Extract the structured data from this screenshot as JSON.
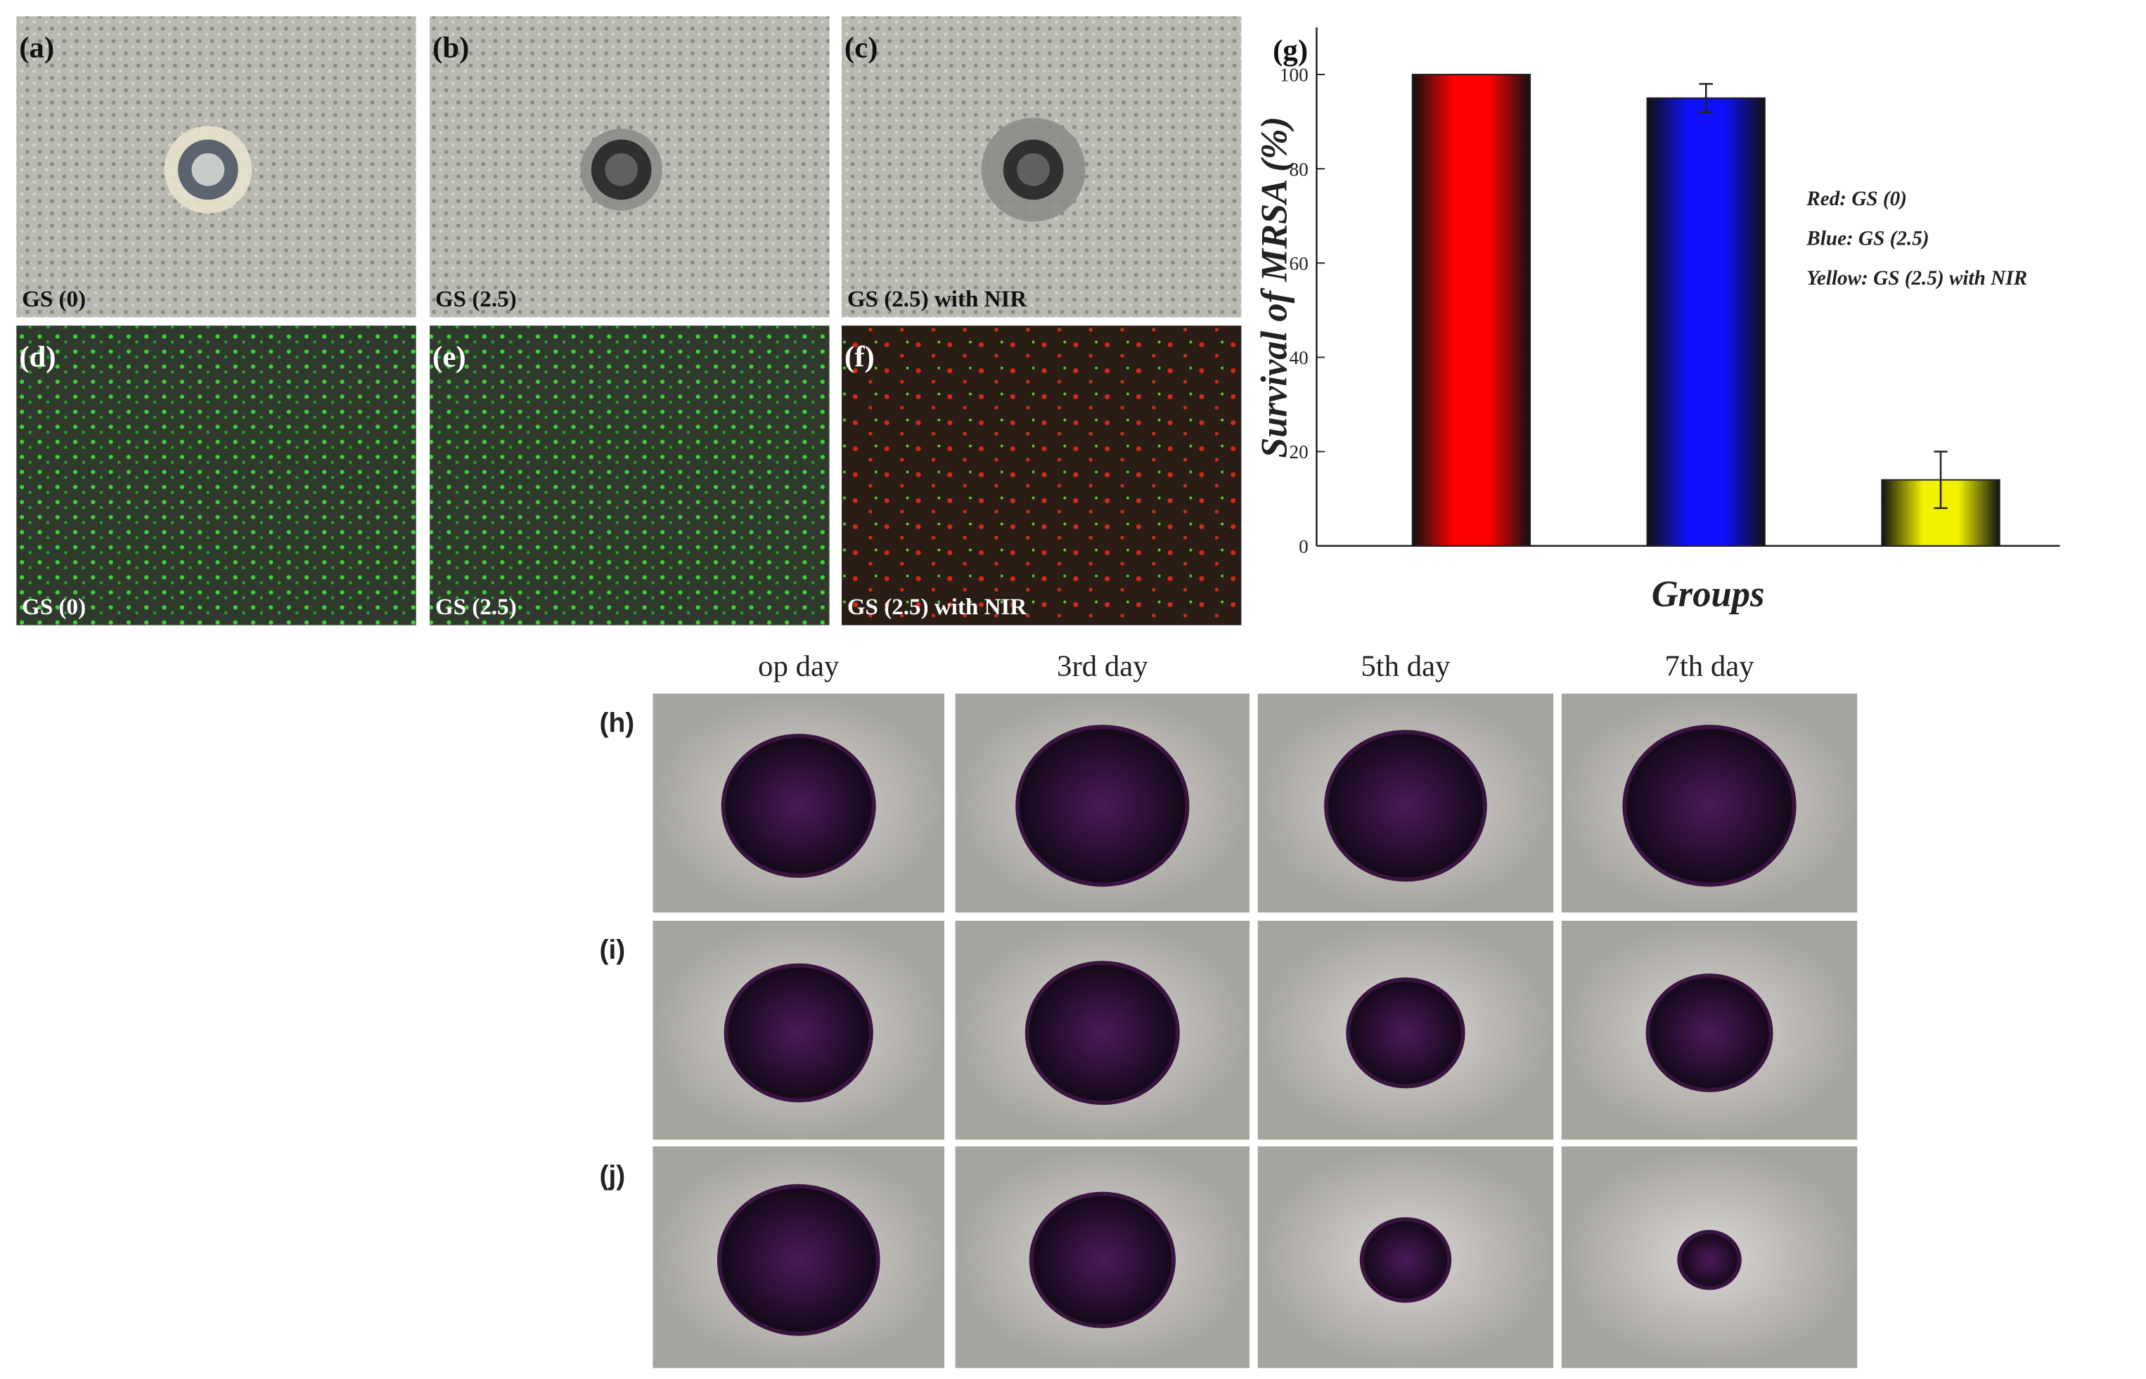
{
  "panels": [
    {
      "label": "(a)",
      "caption": "GS (0)"
    },
    {
      "label": "(b)",
      "caption": "GS (2.5)"
    },
    {
      "label": "(c)",
      "caption": "GS (2.5) with NIR"
    },
    {
      "label": "(d)",
      "caption": "GS (0)"
    },
    {
      "label": "(e)",
      "caption": "GS (2.5)"
    },
    {
      "label": "(f)",
      "caption": "GS (2.5) with NIR"
    }
  ],
  "chart_data": {
    "type": "bar",
    "panel_label": "(g)",
    "ylabel": "Survival of MRSA (%)",
    "xlabel": "Groups",
    "categories": [
      null,
      null,
      null
    ],
    "values": [
      100,
      95,
      14
    ],
    "errors": [
      null,
      3,
      6
    ],
    "colors": [
      "#ff0000",
      "#1010ff",
      "#f2f200"
    ],
    "ylim": [
      0,
      110
    ],
    "yticks": [
      0,
      20,
      40,
      60,
      80,
      100
    ],
    "annotations": [
      "Red: GS (0)",
      "Blue: GS (2.5)",
      "Yellow: GS (2.5) with NIR"
    ]
  },
  "wound_healing": {
    "columns": [
      "op day",
      "3rd day",
      "5th day",
      "7th day"
    ],
    "rows": [
      "(h)",
      "(i)",
      "(j)"
    ]
  }
}
